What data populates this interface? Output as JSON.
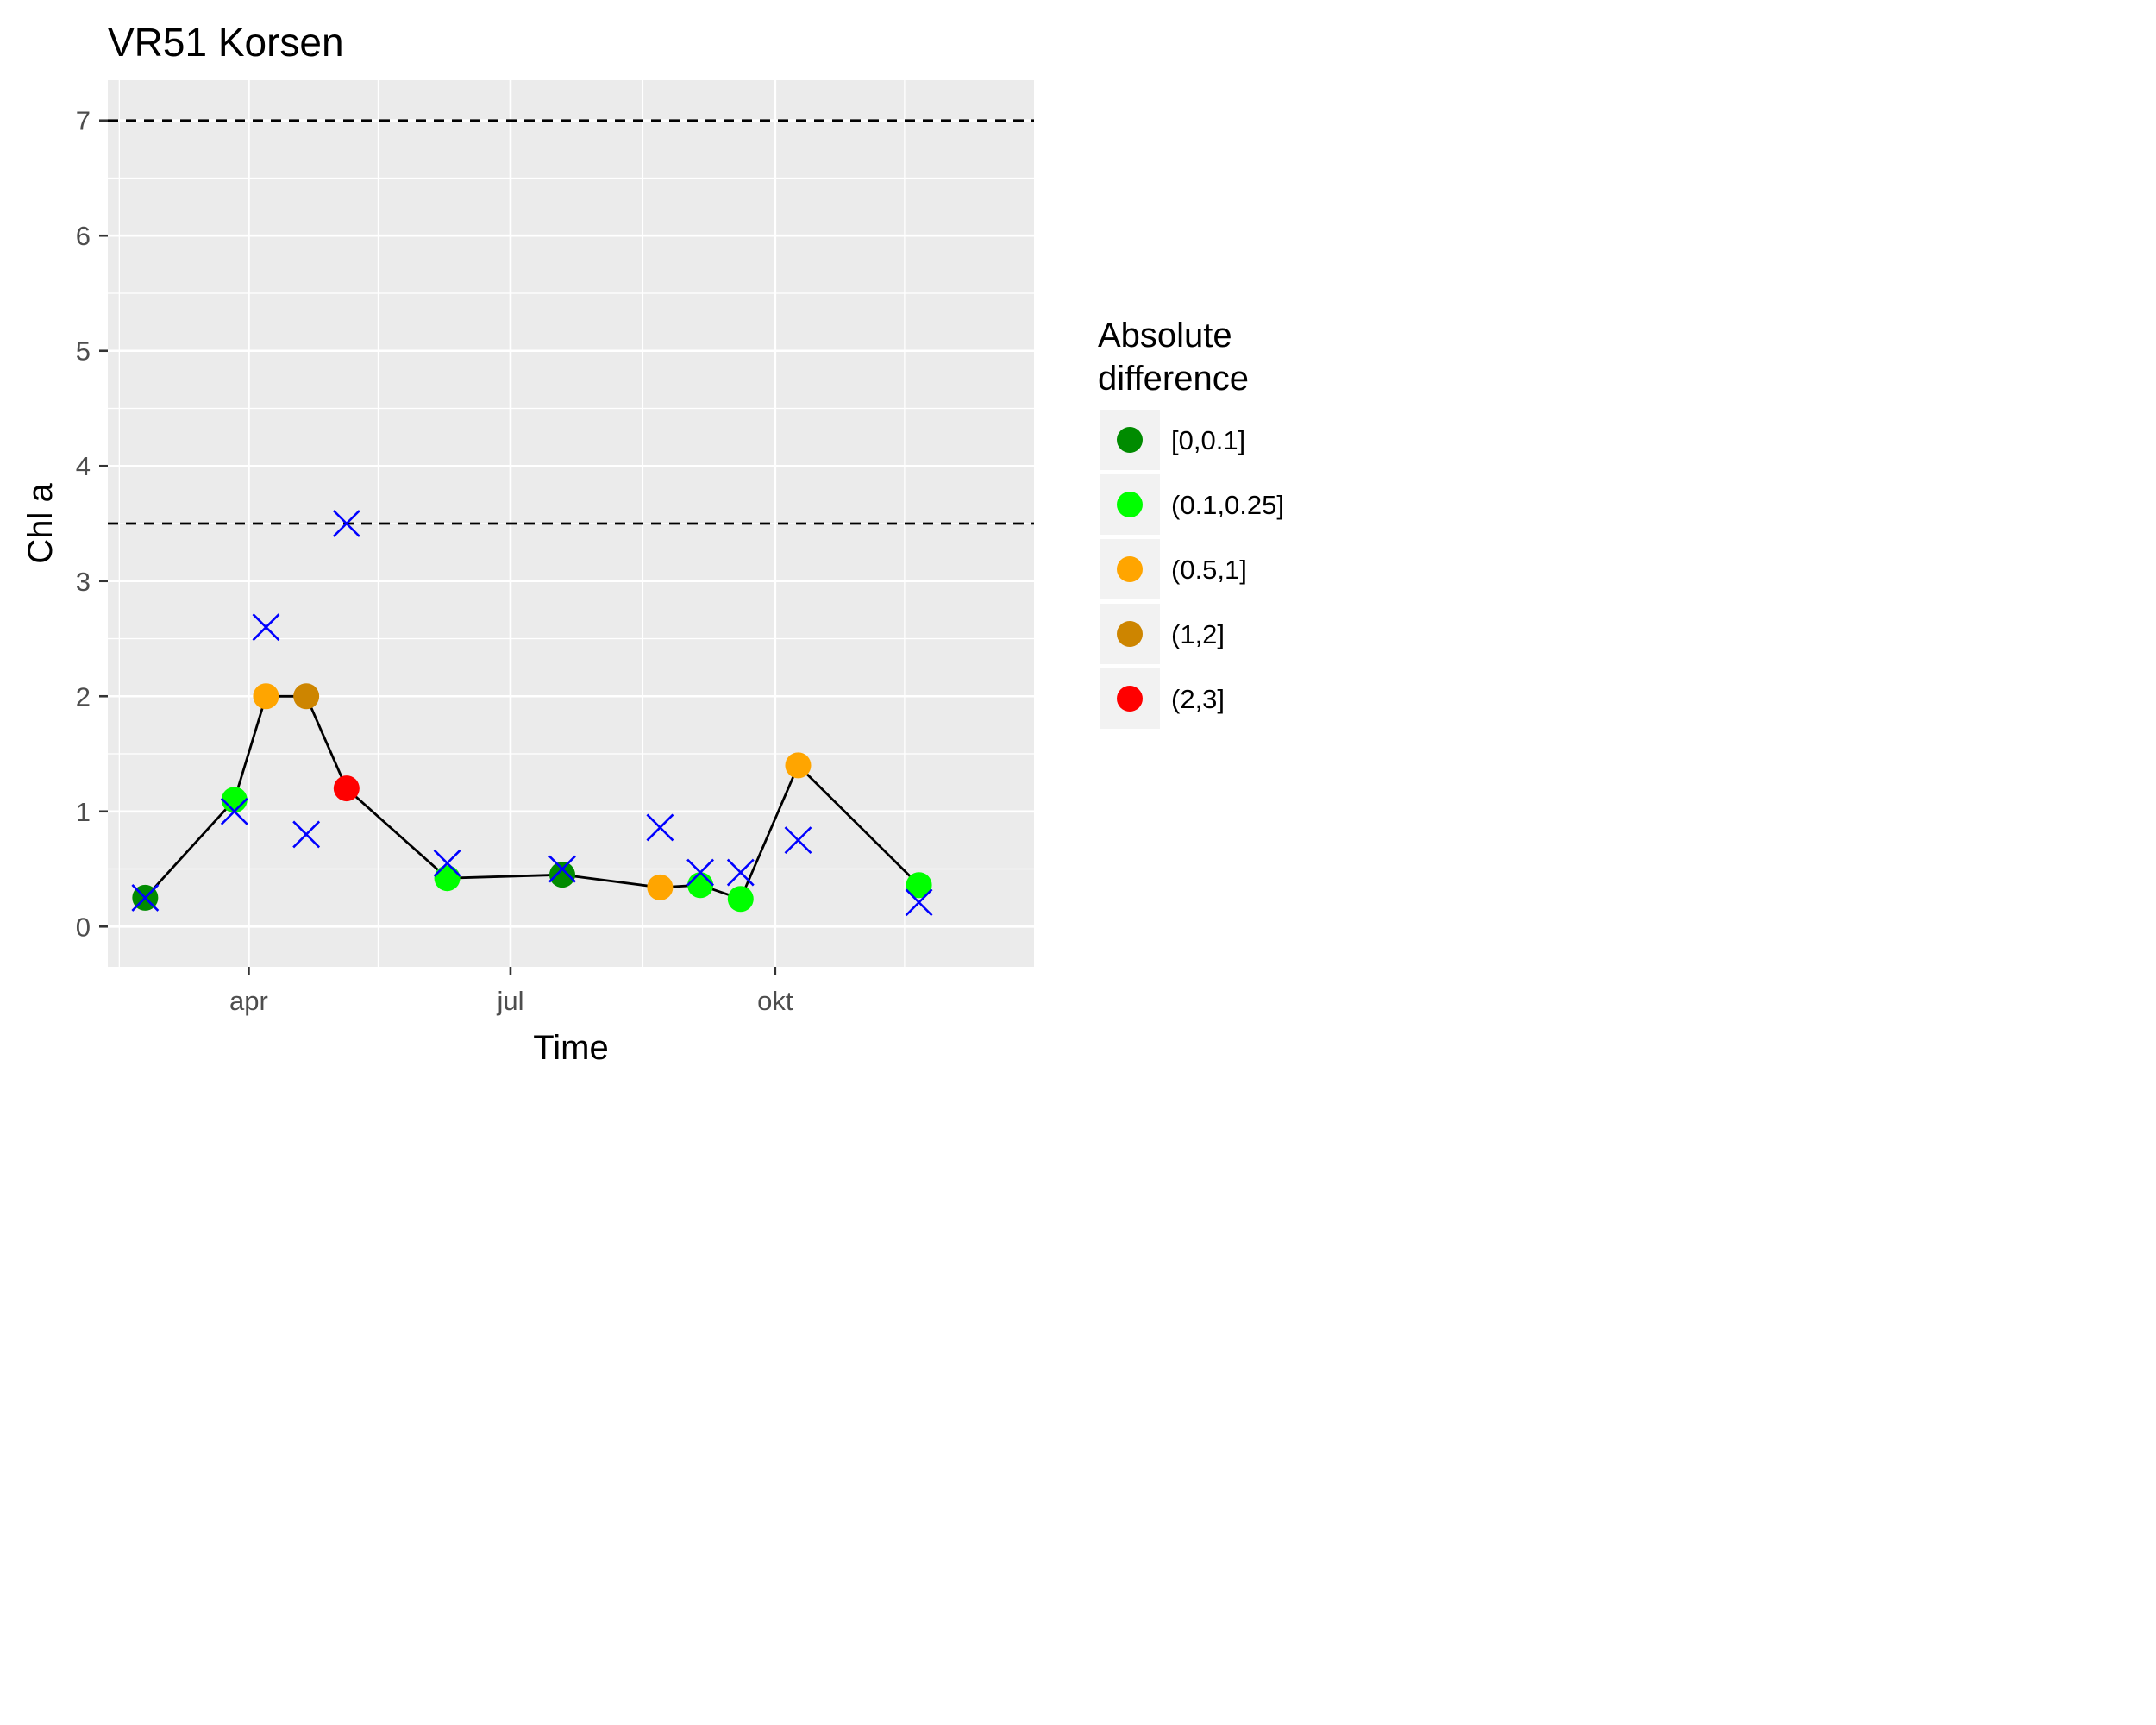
{
  "chart_data": {
    "type": "scatter",
    "title": "VR51 Korsen",
    "xlabel": "Time",
    "ylabel": "Chl a",
    "x_ticks": [
      {
        "date": "2019-04-01",
        "label": "apr"
      },
      {
        "date": "2019-07-01",
        "label": "jul"
      },
      {
        "date": "2019-10-01",
        "label": "okt"
      }
    ],
    "xlim": [
      "2019-02-11",
      "2019-12-30"
    ],
    "ylim": [
      -0.35,
      7.35
    ],
    "y_ticks": [
      0,
      1,
      2,
      3,
      4,
      5,
      6,
      7
    ],
    "grid": true,
    "reference_lines": [
      7,
      3.5
    ],
    "legend": {
      "title_lines": [
        "Absolute",
        "difference"
      ],
      "position": "right",
      "entries": [
        {
          "label": "[0,0.1]",
          "color": "#008b00"
        },
        {
          "label": "(0.1,0.25]",
          "color": "#00ff00"
        },
        {
          "label": "(0.5,1]",
          "color": "#ffa500"
        },
        {
          "label": "(1,2]",
          "color": "#cd8500"
        },
        {
          "label": "(2,3]",
          "color": "#ff0000"
        }
      ]
    },
    "series": [
      {
        "type": "line+point",
        "points": [
          {
            "x": "2019-02-24",
            "y": 0.25,
            "class": "[0,0.1]"
          },
          {
            "x": "2019-03-27",
            "y": 1.1,
            "class": "(0.1,0.25]"
          },
          {
            "x": "2019-04-07",
            "y": 2.0,
            "class": "(0.5,1]"
          },
          {
            "x": "2019-04-21",
            "y": 2.0,
            "class": "(1,2]"
          },
          {
            "x": "2019-05-05",
            "y": 1.2,
            "class": "(2,3]"
          },
          {
            "x": "2019-06-09",
            "y": 0.42,
            "class": "(0.1,0.25]"
          },
          {
            "x": "2019-07-19",
            "y": 0.45,
            "class": "[0,0.1]"
          },
          {
            "x": "2019-08-22",
            "y": 0.34,
            "class": "(0.5,1]"
          },
          {
            "x": "2019-09-05",
            "y": 0.36,
            "class": "(0.1,0.25]"
          },
          {
            "x": "2019-09-19",
            "y": 0.24,
            "class": "(0.1,0.25]"
          },
          {
            "x": "2019-10-09",
            "y": 1.4,
            "class": "(0.5,1]"
          },
          {
            "x": "2019-11-20",
            "y": 0.36,
            "class": "(0.1,0.25]"
          }
        ]
      },
      {
        "type": "cross",
        "color": "#0000ff",
        "points": [
          {
            "x": "2019-02-24",
            "y": 0.25
          },
          {
            "x": "2019-03-27",
            "y": 1.0
          },
          {
            "x": "2019-04-07",
            "y": 2.6
          },
          {
            "x": "2019-04-21",
            "y": 0.8
          },
          {
            "x": "2019-05-05",
            "y": 3.5
          },
          {
            "x": "2019-06-09",
            "y": 0.55
          },
          {
            "x": "2019-07-19",
            "y": 0.5
          },
          {
            "x": "2019-08-22",
            "y": 0.86
          },
          {
            "x": "2019-09-05",
            "y": 0.47
          },
          {
            "x": "2019-09-19",
            "y": 0.47
          },
          {
            "x": "2019-10-09",
            "y": 0.75
          },
          {
            "x": "2019-11-20",
            "y": 0.21
          }
        ]
      }
    ]
  }
}
